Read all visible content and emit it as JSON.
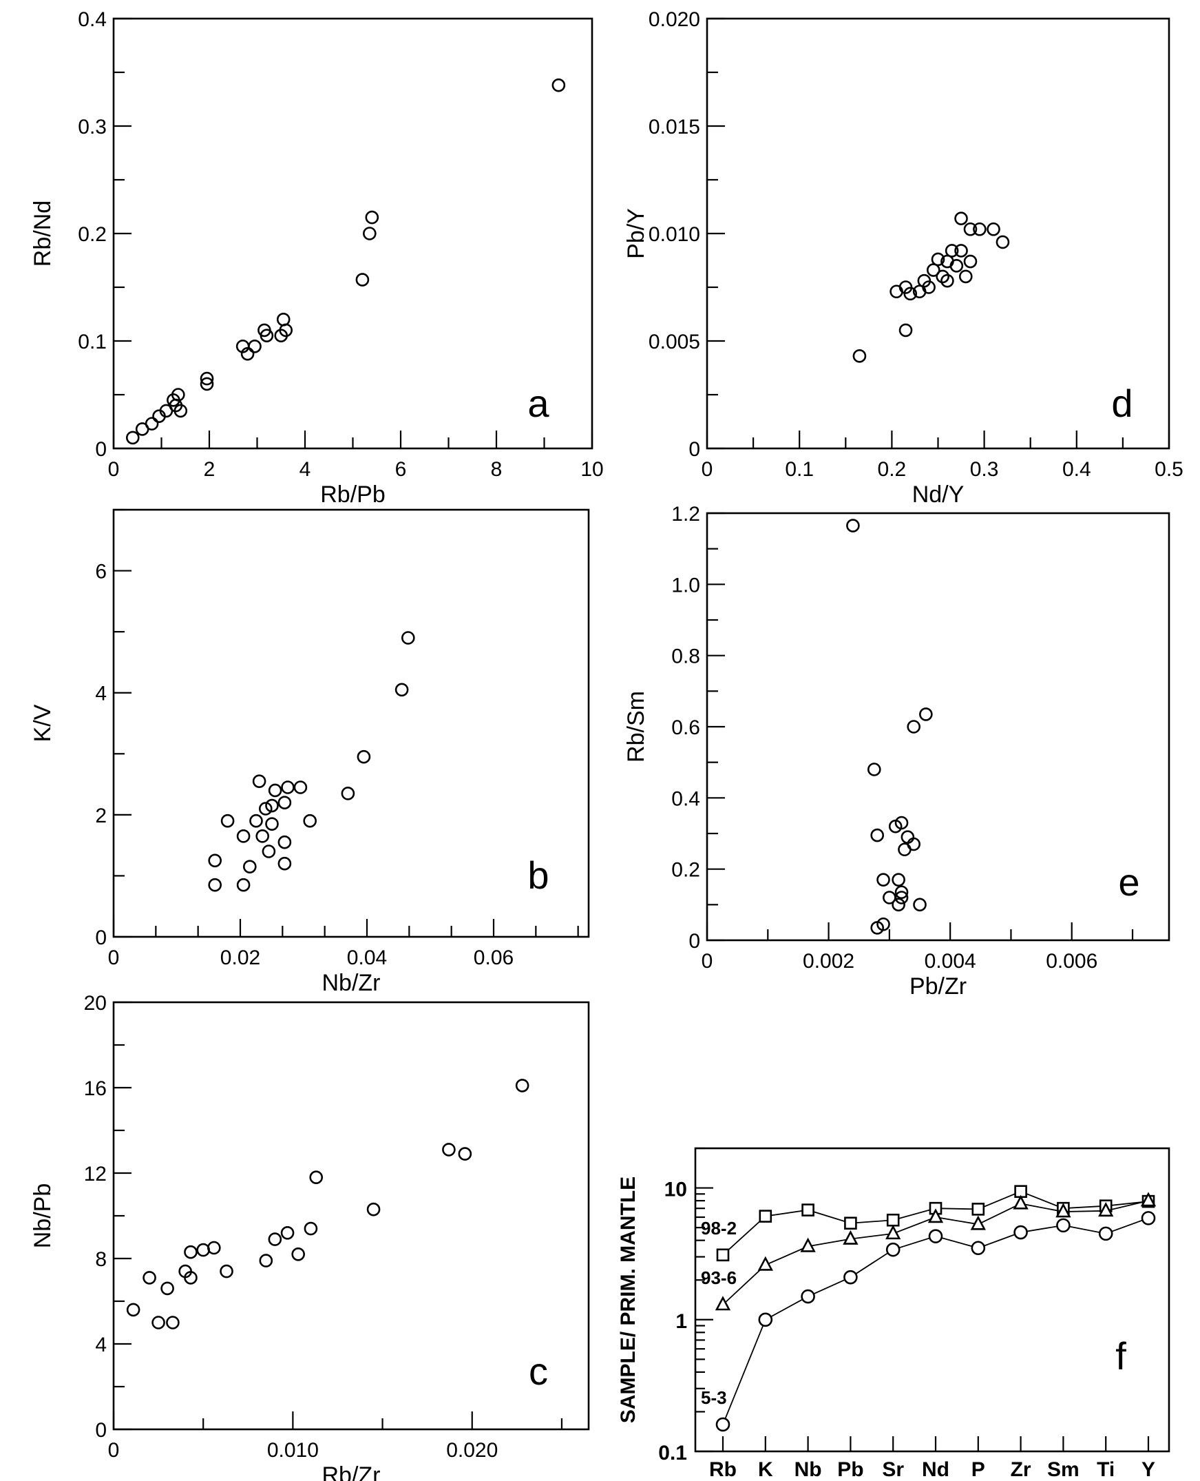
{
  "chart_data": [
    {
      "id": "a",
      "type": "scatter",
      "panel_label": "a",
      "xlabel": "Rb/Pb",
      "ylabel": "Rb/Nd",
      "xlim": [
        0,
        10
      ],
      "ylim": [
        0,
        0.4
      ],
      "x_ticks": [
        "0",
        "2",
        "4",
        "6",
        "8",
        "10"
      ],
      "y_ticks": [
        "0",
        "0.1",
        "0.2",
        "0.3",
        "0.4"
      ],
      "points": [
        {
          "x": 0.4,
          "y": 0.01
        },
        {
          "x": 0.6,
          "y": 0.018
        },
        {
          "x": 0.8,
          "y": 0.023
        },
        {
          "x": 0.95,
          "y": 0.03
        },
        {
          "x": 1.1,
          "y": 0.035
        },
        {
          "x": 1.25,
          "y": 0.045
        },
        {
          "x": 1.3,
          "y": 0.04
        },
        {
          "x": 1.35,
          "y": 0.05
        },
        {
          "x": 1.4,
          "y": 0.035
        },
        {
          "x": 1.95,
          "y": 0.065
        },
        {
          "x": 1.95,
          "y": 0.06
        },
        {
          "x": 2.7,
          "y": 0.095
        },
        {
          "x": 2.8,
          "y": 0.088
        },
        {
          "x": 2.95,
          "y": 0.095
        },
        {
          "x": 3.15,
          "y": 0.11
        },
        {
          "x": 3.2,
          "y": 0.105
        },
        {
          "x": 3.5,
          "y": 0.105
        },
        {
          "x": 3.55,
          "y": 0.12
        },
        {
          "x": 3.6,
          "y": 0.11
        },
        {
          "x": 5.2,
          "y": 0.157
        },
        {
          "x": 5.35,
          "y": 0.2
        },
        {
          "x": 5.4,
          "y": 0.215
        },
        {
          "x": 9.3,
          "y": 0.338
        }
      ]
    },
    {
      "id": "d",
      "type": "scatter",
      "panel_label": "d",
      "xlabel": "Nd/Y",
      "ylabel": "Pb/Y",
      "xlim": [
        0,
        0.5
      ],
      "ylim": [
        0,
        0.02
      ],
      "x_ticks": [
        "0",
        "0.1",
        "0.2",
        "0.3",
        "0.4",
        "0.5"
      ],
      "y_ticks": [
        "0",
        "0.005",
        "0.010",
        "0.015",
        "0.020"
      ],
      "points": [
        {
          "x": 0.165,
          "y": 0.0043
        },
        {
          "x": 0.215,
          "y": 0.0055
        },
        {
          "x": 0.205,
          "y": 0.0073
        },
        {
          "x": 0.215,
          "y": 0.0075
        },
        {
          "x": 0.22,
          "y": 0.0072
        },
        {
          "x": 0.23,
          "y": 0.0073
        },
        {
          "x": 0.235,
          "y": 0.0078
        },
        {
          "x": 0.24,
          "y": 0.0075
        },
        {
          "x": 0.245,
          "y": 0.0083
        },
        {
          "x": 0.25,
          "y": 0.0088
        },
        {
          "x": 0.255,
          "y": 0.008
        },
        {
          "x": 0.26,
          "y": 0.0078
        },
        {
          "x": 0.26,
          "y": 0.0087
        },
        {
          "x": 0.265,
          "y": 0.0092
        },
        {
          "x": 0.27,
          "y": 0.0085
        },
        {
          "x": 0.275,
          "y": 0.0092
        },
        {
          "x": 0.28,
          "y": 0.008
        },
        {
          "x": 0.285,
          "y": 0.0087
        },
        {
          "x": 0.275,
          "y": 0.0107
        },
        {
          "x": 0.285,
          "y": 0.0102
        },
        {
          "x": 0.295,
          "y": 0.0102
        },
        {
          "x": 0.31,
          "y": 0.0102
        },
        {
          "x": 0.32,
          "y": 0.0096
        }
      ]
    },
    {
      "id": "b",
      "type": "scatter",
      "panel_label": "b",
      "xlabel": "Nb/Zr",
      "ylabel": "K/V",
      "xlim": [
        0,
        0.075
      ],
      "ylim": [
        0,
        7
      ],
      "x_ticks": [
        "0",
        "0.02",
        "0.04",
        "0.06"
      ],
      "y_ticks": [
        "0",
        "2",
        "4",
        "6"
      ],
      "points": [
        {
          "x": 0.016,
          "y": 0.85
        },
        {
          "x": 0.016,
          "y": 1.25
        },
        {
          "x": 0.018,
          "y": 1.9
        },
        {
          "x": 0.0205,
          "y": 0.85
        },
        {
          "x": 0.0205,
          "y": 1.65
        },
        {
          "x": 0.0215,
          "y": 1.15
        },
        {
          "x": 0.0225,
          "y": 1.9
        },
        {
          "x": 0.023,
          "y": 2.55
        },
        {
          "x": 0.0235,
          "y": 1.65
        },
        {
          "x": 0.024,
          "y": 2.1
        },
        {
          "x": 0.0245,
          "y": 1.4
        },
        {
          "x": 0.025,
          "y": 1.85
        },
        {
          "x": 0.025,
          "y": 2.15
        },
        {
          "x": 0.0255,
          "y": 2.4
        },
        {
          "x": 0.027,
          "y": 2.2
        },
        {
          "x": 0.027,
          "y": 1.55
        },
        {
          "x": 0.027,
          "y": 1.2
        },
        {
          "x": 0.0275,
          "y": 2.45
        },
        {
          "x": 0.0295,
          "y": 2.45
        },
        {
          "x": 0.031,
          "y": 1.9
        },
        {
          "x": 0.037,
          "y": 2.35
        },
        {
          "x": 0.0395,
          "y": 2.95
        },
        {
          "x": 0.0455,
          "y": 4.05
        },
        {
          "x": 0.0465,
          "y": 4.9
        }
      ]
    },
    {
      "id": "e",
      "type": "scatter",
      "panel_label": "e",
      "xlabel": "Pb/Zr",
      "ylabel": "Rb/Sm",
      "xlim": [
        0,
        0.0076
      ],
      "ylim": [
        0,
        1.2
      ],
      "x_ticks": [
        "0",
        "0.002",
        "0.004",
        "0.006"
      ],
      "y_ticks": [
        "0",
        "0.2",
        "0.4",
        "0.6",
        "0.8",
        "1.0",
        "1.2"
      ],
      "points": [
        {
          "x": 0.0024,
          "y": 1.165
        },
        {
          "x": 0.0028,
          "y": 0.035
        },
        {
          "x": 0.0029,
          "y": 0.045
        },
        {
          "x": 0.00275,
          "y": 0.48
        },
        {
          "x": 0.0028,
          "y": 0.295
        },
        {
          "x": 0.0029,
          "y": 0.17
        },
        {
          "x": 0.003,
          "y": 0.12
        },
        {
          "x": 0.0031,
          "y": 0.32
        },
        {
          "x": 0.00315,
          "y": 0.17
        },
        {
          "x": 0.00315,
          "y": 0.1
        },
        {
          "x": 0.0032,
          "y": 0.135
        },
        {
          "x": 0.0032,
          "y": 0.12
        },
        {
          "x": 0.0032,
          "y": 0.33
        },
        {
          "x": 0.00325,
          "y": 0.255
        },
        {
          "x": 0.0033,
          "y": 0.29
        },
        {
          "x": 0.0034,
          "y": 0.27
        },
        {
          "x": 0.0035,
          "y": 0.1
        },
        {
          "x": 0.0034,
          "y": 0.6
        },
        {
          "x": 0.0036,
          "y": 0.635
        }
      ]
    },
    {
      "id": "c",
      "type": "scatter",
      "panel_label": "c",
      "xlabel": "Rb/Zr",
      "ylabel": "Nb/Pb",
      "xlim": [
        0,
        0.0265
      ],
      "ylim": [
        0,
        20
      ],
      "x_ticks": [
        "0",
        "0.010",
        "0.020"
      ],
      "y_ticks": [
        "0",
        "4",
        "8",
        "12",
        "16",
        "20"
      ],
      "points": [
        {
          "x": 0.0011,
          "y": 5.6
        },
        {
          "x": 0.002,
          "y": 7.1
        },
        {
          "x": 0.0025,
          "y": 5.0
        },
        {
          "x": 0.003,
          "y": 6.6
        },
        {
          "x": 0.0033,
          "y": 5.0
        },
        {
          "x": 0.004,
          "y": 7.4
        },
        {
          "x": 0.0043,
          "y": 8.3
        },
        {
          "x": 0.0043,
          "y": 7.1
        },
        {
          "x": 0.005,
          "y": 8.4
        },
        {
          "x": 0.0056,
          "y": 8.5
        },
        {
          "x": 0.0063,
          "y": 7.4
        },
        {
          "x": 0.0085,
          "y": 7.9
        },
        {
          "x": 0.009,
          "y": 8.9
        },
        {
          "x": 0.0097,
          "y": 9.2
        },
        {
          "x": 0.0103,
          "y": 8.2
        },
        {
          "x": 0.011,
          "y": 9.4
        },
        {
          "x": 0.0113,
          "y": 11.8
        },
        {
          "x": 0.0145,
          "y": 10.3
        },
        {
          "x": 0.0187,
          "y": 13.1
        },
        {
          "x": 0.0196,
          "y": 12.9
        },
        {
          "x": 0.0228,
          "y": 16.1
        }
      ]
    },
    {
      "id": "f",
      "type": "line",
      "panel_label": "f",
      "ylabel": "SAMPLE/ PRIM. MANTLE",
      "yscale": "log",
      "ylim": [
        0.1,
        20
      ],
      "y_ticks": [
        "0.1",
        "1",
        "10"
      ],
      "categories": [
        "Rb",
        "K",
        "Nb",
        "Pb",
        "Sr",
        "Nd",
        "P",
        "Zr",
        "Sm",
        "Ti",
        "Y"
      ],
      "series": [
        {
          "name": "98-2",
          "marker": "square",
          "values": [
            3.1,
            6.1,
            6.8,
            5.4,
            5.7,
            7.0,
            6.9,
            9.4,
            7.0,
            7.3,
            7.9
          ]
        },
        {
          "name": "93-6",
          "marker": "triangle",
          "values": [
            1.3,
            2.6,
            3.6,
            4.1,
            4.5,
            6.0,
            5.3,
            7.6,
            6.6,
            6.7,
            8.0
          ]
        },
        {
          "name": "5-3",
          "marker": "circle",
          "values": [
            0.16,
            1.0,
            1.5,
            2.1,
            3.4,
            4.3,
            3.5,
            4.6,
            5.2,
            4.5,
            5.9
          ]
        }
      ]
    }
  ]
}
